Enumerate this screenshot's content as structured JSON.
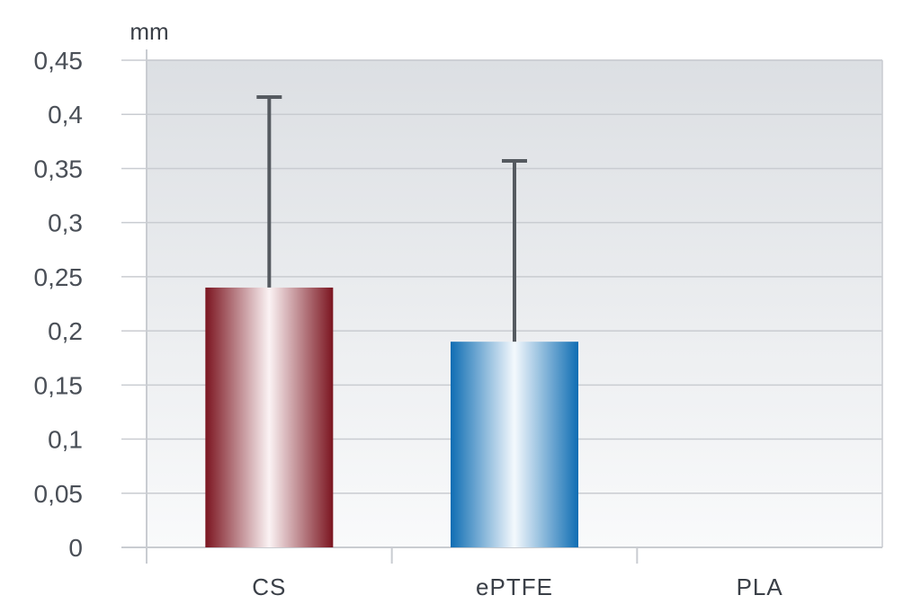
{
  "chart_data": {
    "type": "bar",
    "unit": "mm",
    "categories": [
      "CS",
      "ePTFE",
      "PLA"
    ],
    "values": [
      0.24,
      0.19,
      0
    ],
    "error_upper": [
      0.416,
      0.357,
      null
    ],
    "ylim": [
      0,
      0.45
    ],
    "y_ticks": [
      "0",
      "0,05",
      "0,1",
      "0,15",
      "0,2",
      "0,25",
      "0,3",
      "0,35",
      "0,4",
      "0,45"
    ],
    "y_tick_values": [
      0,
      0.05,
      0.1,
      0.15,
      0.2,
      0.25,
      0.3,
      0.35,
      0.4,
      0.45
    ],
    "grid": true,
    "colors": {
      "CS": {
        "dark": "#7b1520",
        "light": "#fbf3f4"
      },
      "ePTFE": {
        "dark": "#0f6db3",
        "light": "#f4f9fd"
      },
      "error_bar": "#555a60",
      "grid": "#c9ccd1",
      "plot_bg_top": "#dcdfe3",
      "plot_bg_bottom": "#f9fafb"
    }
  }
}
